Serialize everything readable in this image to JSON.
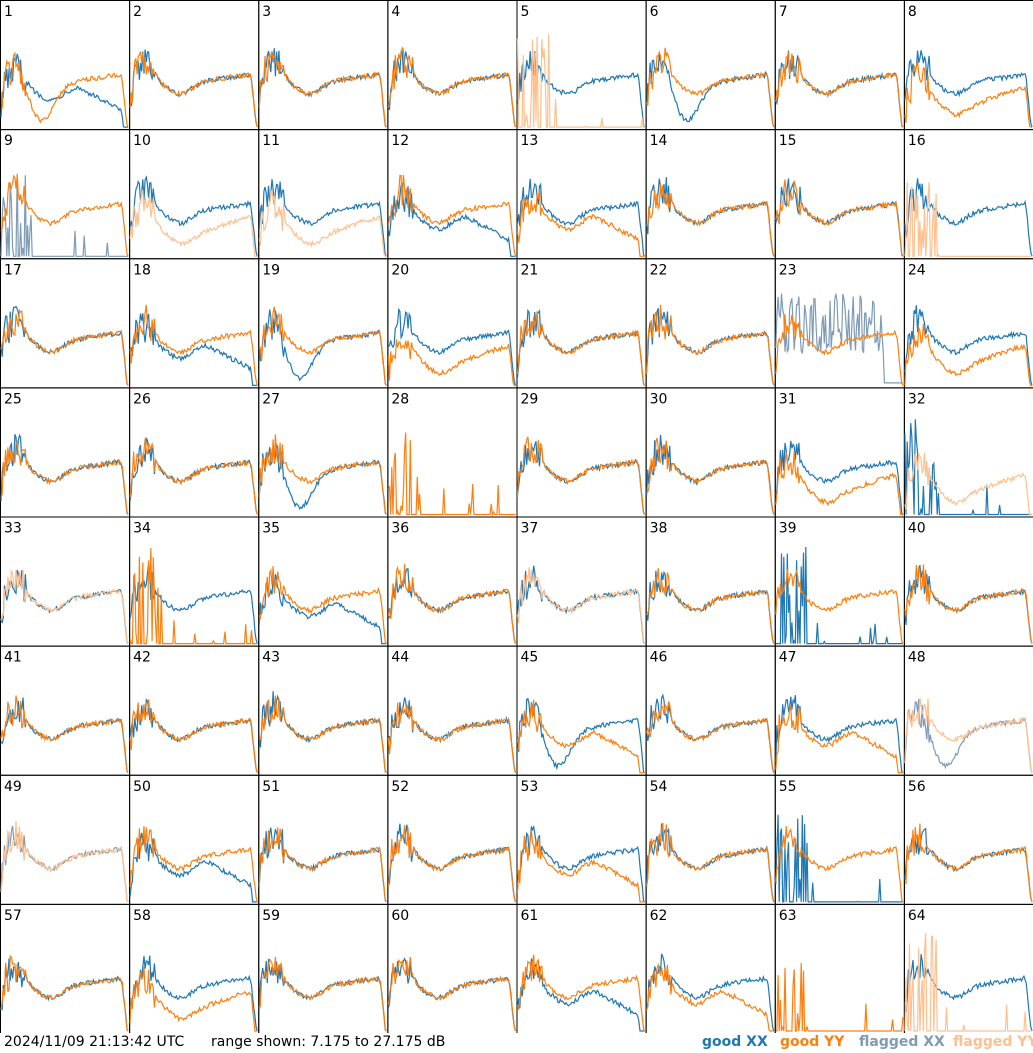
{
  "footer": {
    "timestamp": "2024/11/09 21:13:42 UTC",
    "range_text": "range shown: 7.175 to 27.175 dB"
  },
  "legend": [
    {
      "label": "good XX",
      "color": "#1f77b4"
    },
    {
      "label": "good YY",
      "color": "#ff7f0e"
    },
    {
      "label": "flagged XX",
      "color": "#7f9bb5"
    },
    {
      "label": "flagged YY",
      "color": "#ffc08f"
    }
  ],
  "colors": {
    "good_xx": "#1f77b4",
    "good_yy": "#ff7f0e",
    "flagged_xx": "#7f9bb5",
    "flagged_yy": "#ffc08f"
  },
  "chart_data": {
    "type": "line",
    "ylim_db": [
      7.175,
      27.175
    ],
    "panels": [
      {
        "n": 1,
        "xx": {
          "s": "good",
          "p": "drop"
        },
        "yy": {
          "s": "good",
          "p": "dip"
        }
      },
      {
        "n": 2,
        "xx": {
          "s": "good",
          "p": "normal"
        },
        "yy": {
          "s": "good",
          "p": "normal"
        }
      },
      {
        "n": 3,
        "xx": {
          "s": "good",
          "p": "normal"
        },
        "yy": {
          "s": "good",
          "p": "normal"
        }
      },
      {
        "n": 4,
        "xx": {
          "s": "good",
          "p": "normal"
        },
        "yy": {
          "s": "good",
          "p": "normal"
        }
      },
      {
        "n": 5,
        "xx": {
          "s": "good",
          "p": "normal"
        },
        "yy": {
          "s": "flagged",
          "p": "spike"
        }
      },
      {
        "n": 6,
        "xx": {
          "s": "good",
          "p": "dip"
        },
        "yy": {
          "s": "good",
          "p": "normal"
        }
      },
      {
        "n": 7,
        "xx": {
          "s": "good",
          "p": "normal"
        },
        "yy": {
          "s": "good",
          "p": "normal"
        }
      },
      {
        "n": 8,
        "xx": {
          "s": "good",
          "p": "normal"
        },
        "yy": {
          "s": "good",
          "p": "low"
        }
      },
      {
        "n": 9,
        "xx": {
          "s": "flagged",
          "p": "spike"
        },
        "yy": {
          "s": "good",
          "p": "normal"
        }
      },
      {
        "n": 10,
        "xx": {
          "s": "good",
          "p": "normal"
        },
        "yy": {
          "s": "flagged",
          "p": "low"
        }
      },
      {
        "n": 11,
        "xx": {
          "s": "good",
          "p": "normal"
        },
        "yy": {
          "s": "flagged",
          "p": "low"
        }
      },
      {
        "n": 12,
        "xx": {
          "s": "good",
          "p": "drop"
        },
        "yy": {
          "s": "good",
          "p": "normal"
        }
      },
      {
        "n": 13,
        "xx": {
          "s": "good",
          "p": "normal"
        },
        "yy": {
          "s": "good",
          "p": "drop"
        }
      },
      {
        "n": 14,
        "xx": {
          "s": "good",
          "p": "normal"
        },
        "yy": {
          "s": "good",
          "p": "normal"
        }
      },
      {
        "n": 15,
        "xx": {
          "s": "good",
          "p": "normal"
        },
        "yy": {
          "s": "good",
          "p": "normal"
        }
      },
      {
        "n": 16,
        "xx": {
          "s": "good",
          "p": "normal"
        },
        "yy": {
          "s": "flagged",
          "p": "spike"
        }
      },
      {
        "n": 17,
        "xx": {
          "s": "good",
          "p": "normal"
        },
        "yy": {
          "s": "good",
          "p": "normal"
        }
      },
      {
        "n": 18,
        "xx": {
          "s": "good",
          "p": "drop"
        },
        "yy": {
          "s": "good",
          "p": "normal"
        }
      },
      {
        "n": 19,
        "xx": {
          "s": "good",
          "p": "dip"
        },
        "yy": {
          "s": "good",
          "p": "normal"
        }
      },
      {
        "n": 20,
        "xx": {
          "s": "good",
          "p": "normal"
        },
        "yy": {
          "s": "good",
          "p": "low"
        }
      },
      {
        "n": 21,
        "xx": {
          "s": "good",
          "p": "normal"
        },
        "yy": {
          "s": "good",
          "p": "normal"
        }
      },
      {
        "n": 22,
        "xx": {
          "s": "good",
          "p": "normal"
        },
        "yy": {
          "s": "good",
          "p": "normal"
        }
      },
      {
        "n": 23,
        "xx": {
          "s": "flagged",
          "p": "noise"
        },
        "yy": {
          "s": "good",
          "p": "normal"
        }
      },
      {
        "n": 24,
        "xx": {
          "s": "good",
          "p": "normal"
        },
        "yy": {
          "s": "good",
          "p": "low"
        }
      },
      {
        "n": 25,
        "xx": {
          "s": "good",
          "p": "normal"
        },
        "yy": {
          "s": "good",
          "p": "normal"
        }
      },
      {
        "n": 26,
        "xx": {
          "s": "good",
          "p": "normal"
        },
        "yy": {
          "s": "good",
          "p": "normal"
        }
      },
      {
        "n": 27,
        "xx": {
          "s": "good",
          "p": "dip"
        },
        "yy": {
          "s": "good",
          "p": "normal"
        }
      },
      {
        "n": 28,
        "xx": {
          "s": "none",
          "p": "none"
        },
        "yy": {
          "s": "good",
          "p": "spike"
        }
      },
      {
        "n": 29,
        "xx": {
          "s": "good",
          "p": "normal"
        },
        "yy": {
          "s": "good",
          "p": "normal"
        }
      },
      {
        "n": 30,
        "xx": {
          "s": "good",
          "p": "normal"
        },
        "yy": {
          "s": "good",
          "p": "normal"
        }
      },
      {
        "n": 31,
        "xx": {
          "s": "good",
          "p": "normal"
        },
        "yy": {
          "s": "good",
          "p": "low"
        }
      },
      {
        "n": 32,
        "xx": {
          "s": "good",
          "p": "spike"
        },
        "yy": {
          "s": "flagged",
          "p": "low"
        }
      },
      {
        "n": 33,
        "xx": {
          "s": "good",
          "p": "normal"
        },
        "yy": {
          "s": "flagged",
          "p": "normal"
        }
      },
      {
        "n": 34,
        "xx": {
          "s": "good",
          "p": "normal"
        },
        "yy": {
          "s": "good",
          "p": "spike"
        }
      },
      {
        "n": 35,
        "xx": {
          "s": "good",
          "p": "drop"
        },
        "yy": {
          "s": "good",
          "p": "normal"
        }
      },
      {
        "n": 36,
        "xx": {
          "s": "good",
          "p": "normal"
        },
        "yy": {
          "s": "good",
          "p": "normal"
        }
      },
      {
        "n": 37,
        "xx": {
          "s": "good",
          "p": "normal"
        },
        "yy": {
          "s": "flagged",
          "p": "normal"
        }
      },
      {
        "n": 38,
        "xx": {
          "s": "good",
          "p": "normal"
        },
        "yy": {
          "s": "good",
          "p": "normal"
        }
      },
      {
        "n": 39,
        "xx": {
          "s": "good",
          "p": "spike"
        },
        "yy": {
          "s": "good",
          "p": "normal"
        }
      },
      {
        "n": 40,
        "xx": {
          "s": "good",
          "p": "normal"
        },
        "yy": {
          "s": "good",
          "p": "normal"
        }
      },
      {
        "n": 41,
        "xx": {
          "s": "good",
          "p": "normal"
        },
        "yy": {
          "s": "good",
          "p": "normal"
        }
      },
      {
        "n": 42,
        "xx": {
          "s": "good",
          "p": "normal"
        },
        "yy": {
          "s": "good",
          "p": "normal"
        }
      },
      {
        "n": 43,
        "xx": {
          "s": "good",
          "p": "normal"
        },
        "yy": {
          "s": "good",
          "p": "normal"
        }
      },
      {
        "n": 44,
        "xx": {
          "s": "good",
          "p": "normal"
        },
        "yy": {
          "s": "good",
          "p": "normal"
        }
      },
      {
        "n": 45,
        "xx": {
          "s": "good",
          "p": "dip"
        },
        "yy": {
          "s": "good",
          "p": "drop"
        }
      },
      {
        "n": 46,
        "xx": {
          "s": "good",
          "p": "normal"
        },
        "yy": {
          "s": "good",
          "p": "normal"
        }
      },
      {
        "n": 47,
        "xx": {
          "s": "good",
          "p": "normal"
        },
        "yy": {
          "s": "good",
          "p": "drop"
        }
      },
      {
        "n": 48,
        "xx": {
          "s": "flagged",
          "p": "dip"
        },
        "yy": {
          "s": "flagged",
          "p": "normal"
        }
      },
      {
        "n": 49,
        "xx": {
          "s": "flagged",
          "p": "normal"
        },
        "yy": {
          "s": "flagged",
          "p": "normal"
        }
      },
      {
        "n": 50,
        "xx": {
          "s": "good",
          "p": "drop"
        },
        "yy": {
          "s": "good",
          "p": "normal"
        }
      },
      {
        "n": 51,
        "xx": {
          "s": "good",
          "p": "normal"
        },
        "yy": {
          "s": "good",
          "p": "normal"
        }
      },
      {
        "n": 52,
        "xx": {
          "s": "good",
          "p": "normal"
        },
        "yy": {
          "s": "good",
          "p": "normal"
        }
      },
      {
        "n": 53,
        "xx": {
          "s": "good",
          "p": "normal"
        },
        "yy": {
          "s": "good",
          "p": "drop"
        }
      },
      {
        "n": 54,
        "xx": {
          "s": "good",
          "p": "normal"
        },
        "yy": {
          "s": "good",
          "p": "normal"
        }
      },
      {
        "n": 55,
        "xx": {
          "s": "good",
          "p": "spike"
        },
        "yy": {
          "s": "good",
          "p": "normal"
        }
      },
      {
        "n": 56,
        "xx": {
          "s": "good",
          "p": "normal"
        },
        "yy": {
          "s": "good",
          "p": "normal"
        }
      },
      {
        "n": 57,
        "xx": {
          "s": "good",
          "p": "normal"
        },
        "yy": {
          "s": "good",
          "p": "normal"
        }
      },
      {
        "n": 58,
        "xx": {
          "s": "good",
          "p": "normal"
        },
        "yy": {
          "s": "good",
          "p": "low"
        }
      },
      {
        "n": 59,
        "xx": {
          "s": "good",
          "p": "normal"
        },
        "yy": {
          "s": "good",
          "p": "normal"
        }
      },
      {
        "n": 60,
        "xx": {
          "s": "good",
          "p": "normal"
        },
        "yy": {
          "s": "good",
          "p": "normal"
        }
      },
      {
        "n": 61,
        "xx": {
          "s": "good",
          "p": "drop"
        },
        "yy": {
          "s": "good",
          "p": "normal"
        }
      },
      {
        "n": 62,
        "xx": {
          "s": "good",
          "p": "normal"
        },
        "yy": {
          "s": "good",
          "p": "drop"
        }
      },
      {
        "n": 63,
        "xx": {
          "s": "none",
          "p": "none"
        },
        "yy": {
          "s": "good",
          "p": "spike"
        }
      },
      {
        "n": 64,
        "xx": {
          "s": "good",
          "p": "normal"
        },
        "yy": {
          "s": "flagged",
          "p": "spike"
        }
      }
    ]
  }
}
